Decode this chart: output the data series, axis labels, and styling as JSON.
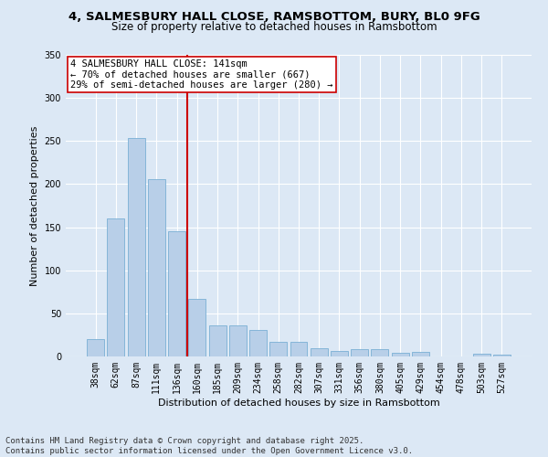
{
  "title_line1": "4, SALMESBURY HALL CLOSE, RAMSBOTTOM, BURY, BL0 9FG",
  "title_line2": "Size of property relative to detached houses in Ramsbottom",
  "xlabel": "Distribution of detached houses by size in Ramsbottom",
  "ylabel": "Number of detached properties",
  "categories": [
    "38sqm",
    "62sqm",
    "87sqm",
    "111sqm",
    "136sqm",
    "160sqm",
    "185sqm",
    "209sqm",
    "234sqm",
    "258sqm",
    "282sqm",
    "307sqm",
    "331sqm",
    "356sqm",
    "380sqm",
    "405sqm",
    "429sqm",
    "454sqm",
    "478sqm",
    "503sqm",
    "527sqm"
  ],
  "values": [
    20,
    160,
    253,
    206,
    145,
    67,
    36,
    36,
    31,
    17,
    17,
    10,
    6,
    9,
    9,
    4,
    5,
    0,
    0,
    3,
    2
  ],
  "bar_color": "#b8cfe8",
  "bar_edge_color": "#7aafd4",
  "vline_color": "#cc0000",
  "vline_pos": 4.5,
  "annotation_text": "4 SALMESBURY HALL CLOSE: 141sqm\n← 70% of detached houses are smaller (667)\n29% of semi-detached houses are larger (280) →",
  "annotation_box_color": "#ffffff",
  "annotation_box_edge": "#cc0000",
  "ylim": [
    0,
    350
  ],
  "yticks": [
    0,
    50,
    100,
    150,
    200,
    250,
    300,
    350
  ],
  "footnote": "Contains HM Land Registry data © Crown copyright and database right 2025.\nContains public sector information licensed under the Open Government Licence v3.0.",
  "bg_color": "#dce8f5",
  "plot_bg_color": "#dce8f5",
  "title_fontsize": 9.5,
  "subtitle_fontsize": 8.5,
  "axis_label_fontsize": 8,
  "tick_fontsize": 7,
  "annotation_fontsize": 7.5,
  "footnote_fontsize": 6.5
}
